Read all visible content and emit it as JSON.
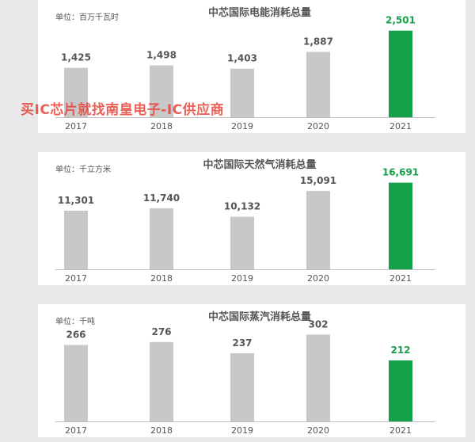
{
  "chart_data": [
    {
      "type": "bar",
      "title": "中芯国际电能消耗总量",
      "unit": "单位：百万千瓦时",
      "categories": [
        "2017",
        "2018",
        "2019",
        "2020",
        "2021"
      ],
      "values": [
        1425,
        1498,
        1403,
        1887,
        2501
      ],
      "value_labels": [
        "1,425",
        "1,498",
        "1,403",
        "1,887",
        "2,501"
      ],
      "ylim": [
        0,
        2700
      ],
      "grid": false,
      "highlight_index": 4
    },
    {
      "type": "bar",
      "title": "中芯国际天然气消耗总量",
      "unit": "单位：千立方米",
      "categories": [
        "2017",
        "2018",
        "2019",
        "2020",
        "2021"
      ],
      "values": [
        11301,
        11740,
        10132,
        15091,
        16691
      ],
      "value_labels": [
        "11,301",
        "11,740",
        "10,132",
        "15,091",
        "16,691"
      ],
      "ylim": [
        0,
        18000
      ],
      "grid": false,
      "highlight_index": 4
    },
    {
      "type": "bar",
      "title": "中芯国际蒸汽消耗总量",
      "unit": "单位：千吨",
      "categories": [
        "2017",
        "2018",
        "2019",
        "2020",
        "2021"
      ],
      "values": [
        266,
        276,
        237,
        302,
        212
      ],
      "value_labels": [
        "266",
        "276",
        "237",
        "302",
        "212"
      ],
      "ylim": [
        0,
        325
      ],
      "grid": false,
      "highlight_index": 4
    }
  ],
  "watermark": "买IC芯片就找南皇电子-IC供应商",
  "colors": {
    "bar": "#c8c8c8",
    "highlight": "#14a049",
    "value_label": "#555555",
    "highlight_label": "#14a049",
    "title": "#555555",
    "axis": "#bfbfbf"
  }
}
